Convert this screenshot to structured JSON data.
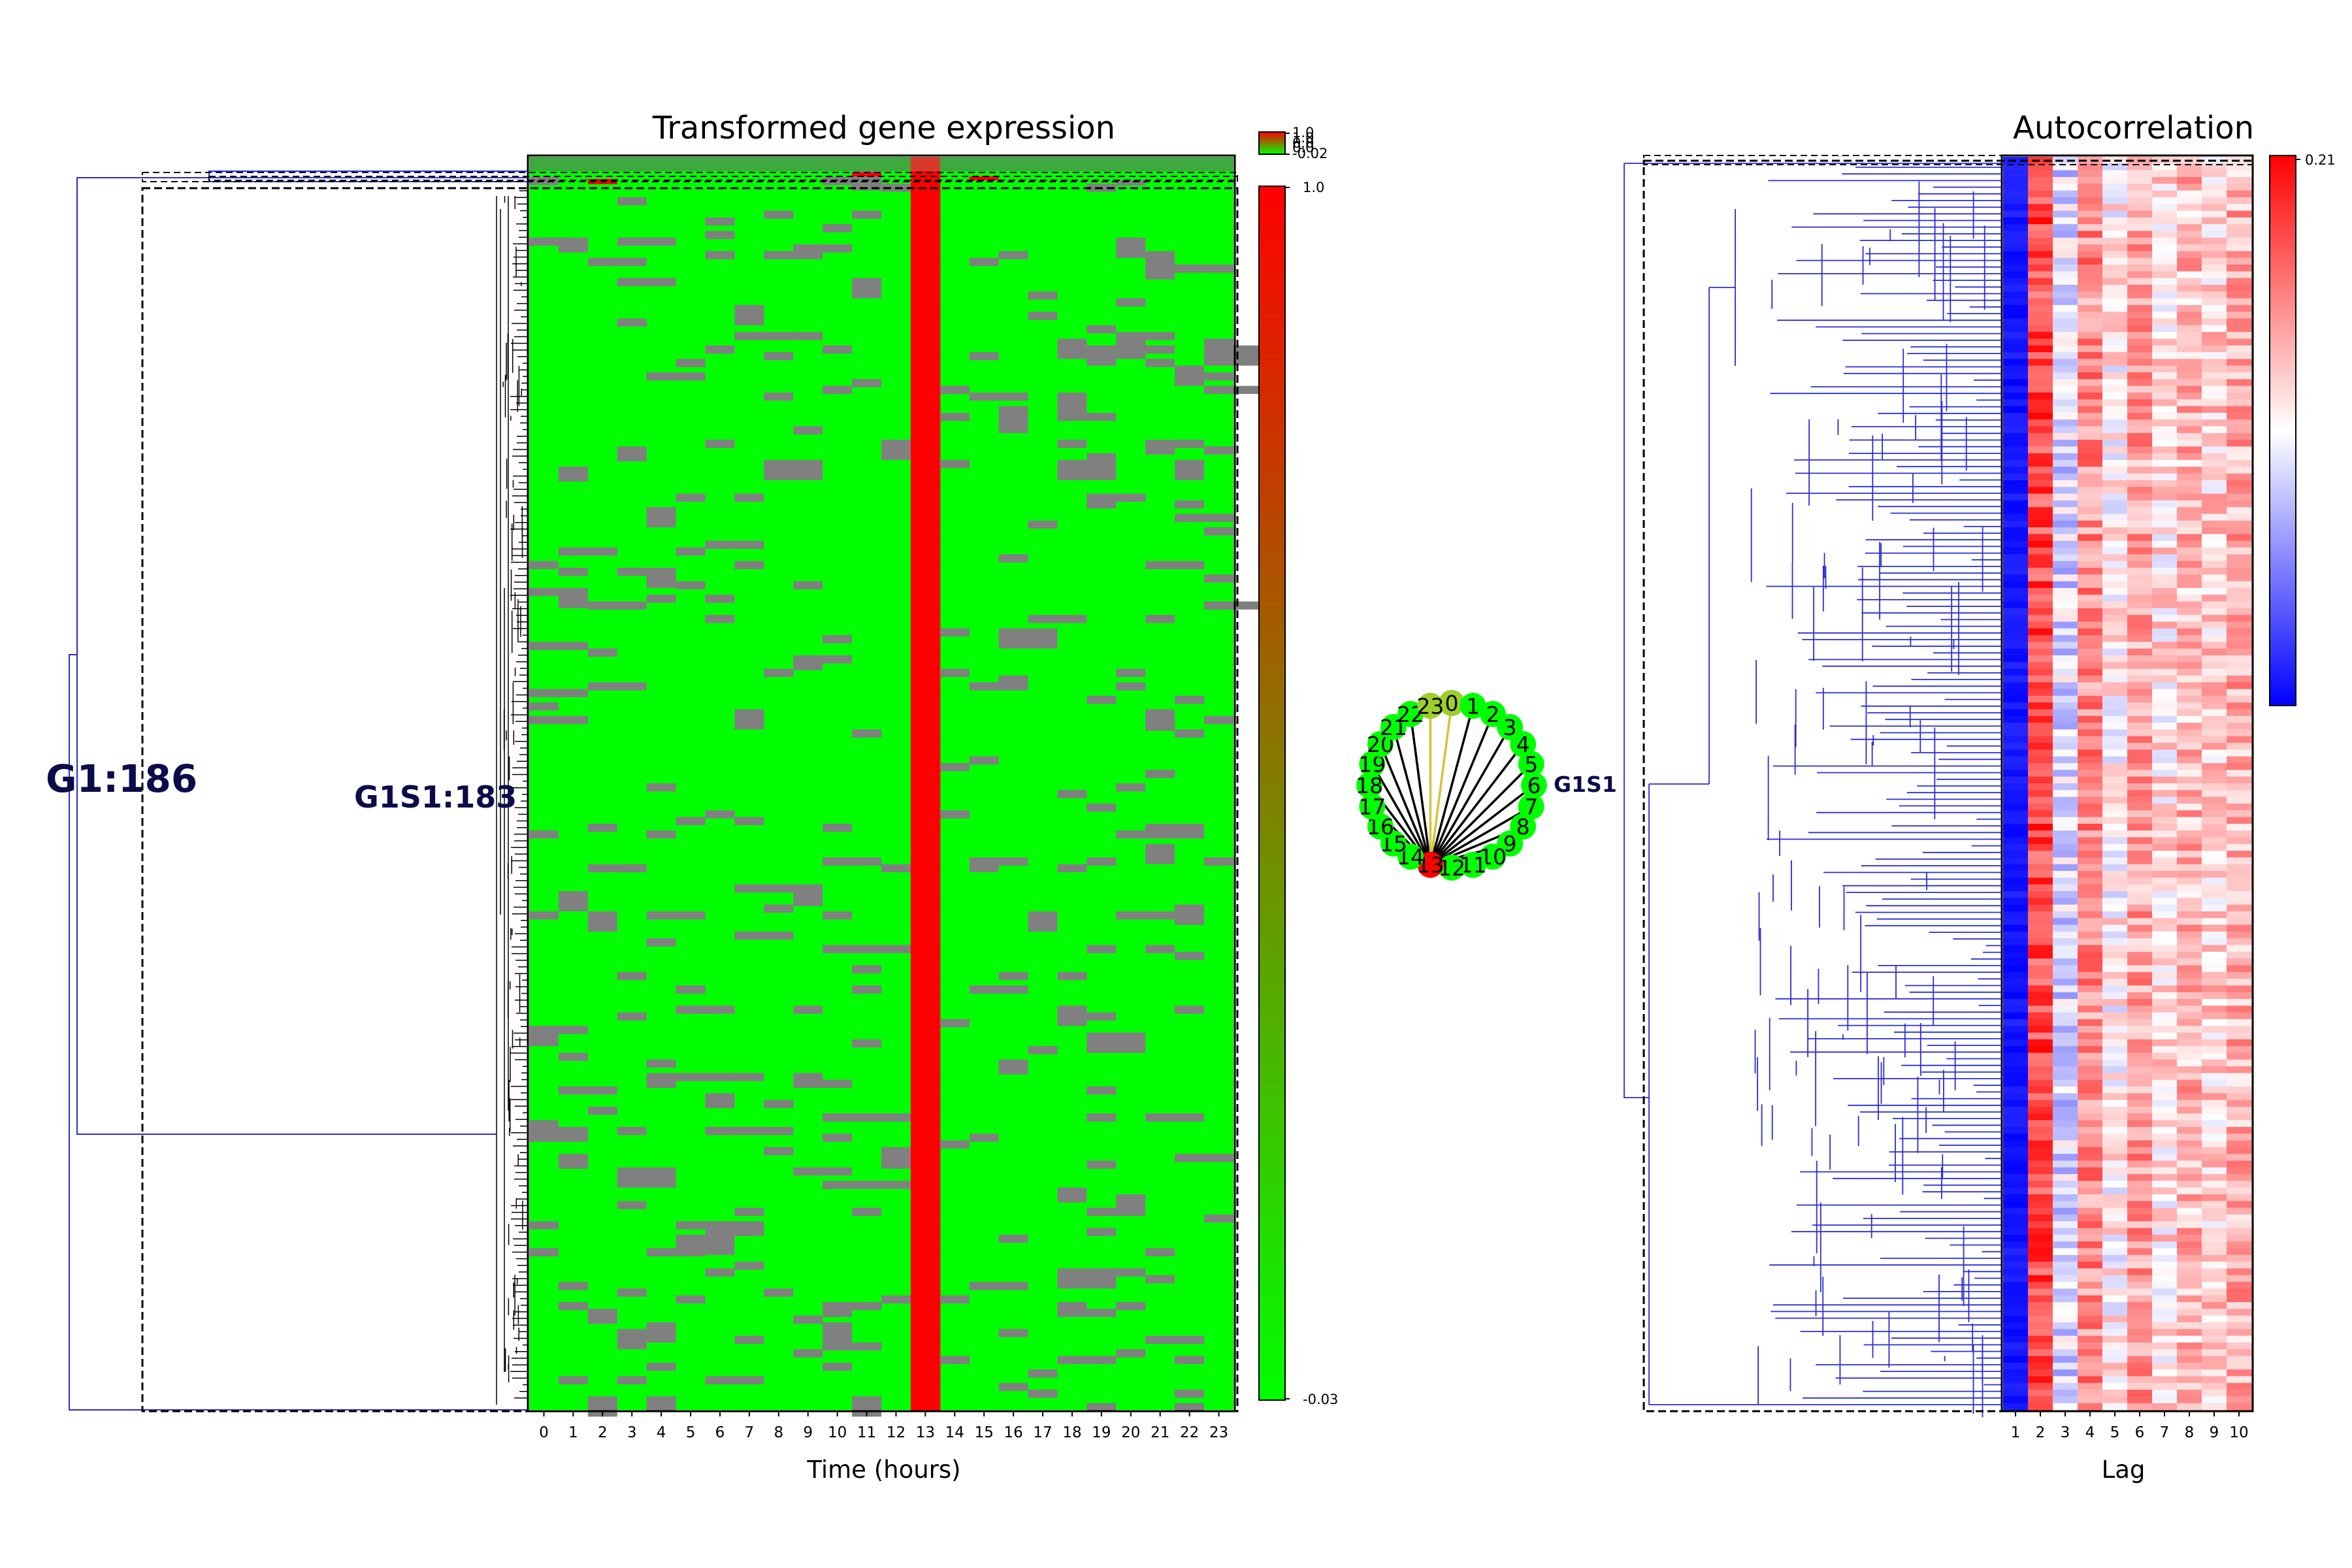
{
  "chart_data": [
    {
      "type": "heatmap",
      "title": "Transformed gene expression",
      "xlabel": "Time (hours)",
      "x_ticks": [
        "0",
        "1",
        "2",
        "3",
        "4",
        "5",
        "6",
        "7",
        "8",
        "9",
        "10",
        "11",
        "12",
        "13",
        "14",
        "15",
        "16",
        "17",
        "18",
        "19",
        "20",
        "21",
        "22",
        "23"
      ],
      "n_rows": 186,
      "peak_hour": 13,
      "colormap": [
        "#00ff00",
        "#ff0000"
      ],
      "missing_color": "#808080",
      "colorbar_main": {
        "min_label": "-0.03",
        "max_label": "1.0"
      },
      "colorbar_small": {
        "labels": [
          "1.0",
          "1.0",
          "0.0",
          "0.0",
          "-0.02"
        ]
      },
      "clusters": [
        {
          "label": "G1:186",
          "size": 186
        },
        {
          "label": "G1S1:183",
          "size": 183
        }
      ]
    },
    {
      "type": "diagram",
      "name": "circular-graph",
      "nodes": [
        "0",
        "1",
        "2",
        "3",
        "4",
        "5",
        "6",
        "7",
        "8",
        "9",
        "10",
        "11",
        "12",
        "13",
        "14",
        "15",
        "16",
        "17",
        "18",
        "19",
        "20",
        "21",
        "22",
        "23"
      ],
      "label": "G1S1",
      "hub_node": "13",
      "node_color": "#00ff00",
      "hub_color": "#ff0000",
      "edge_color": "#000000",
      "highlight_edge_color": "#d4c43a"
    },
    {
      "type": "heatmap",
      "title": "Autocorrelation",
      "xlabel": "Lag",
      "x_ticks": [
        "1",
        "2",
        "3",
        "4",
        "5",
        "6",
        "7",
        "8",
        "9",
        "10"
      ],
      "n_rows": 186,
      "colormap": [
        "#0000ff",
        "#ffffff",
        "#ff0000"
      ],
      "colorbar": {
        "max_label": "0.21"
      }
    }
  ]
}
